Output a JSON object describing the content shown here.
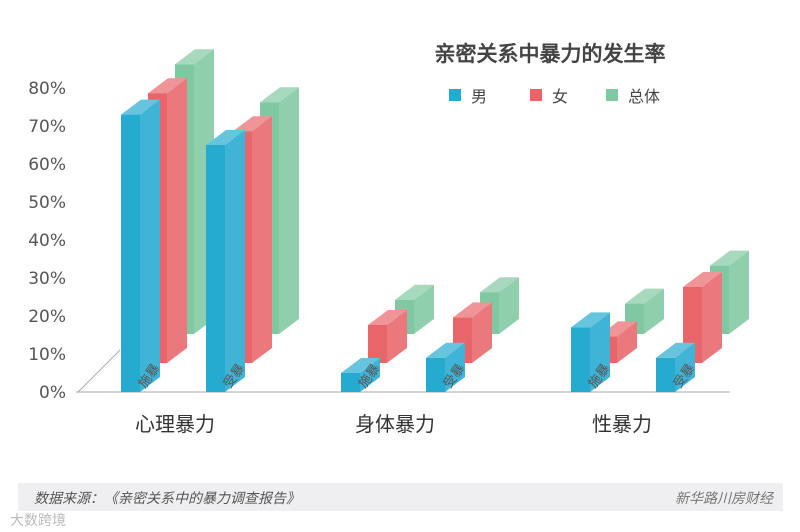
{
  "chart_data": {
    "type": "bar",
    "title": "亲密关系中暴力的发生率",
    "categories": [
      "心理暴力",
      "身体暴力",
      "性暴力"
    ],
    "subcategories": [
      "施暴",
      "受暴"
    ],
    "series": [
      {
        "name": "男",
        "color": "#25aad0",
        "values": [
          [
            73,
            65
          ],
          [
            5,
            9
          ],
          [
            17,
            9
          ]
        ]
      },
      {
        "name": "女",
        "color": "#e8666a",
        "values": [
          [
            71,
            61
          ],
          [
            10,
            12
          ],
          [
            7,
            20
          ]
        ]
      },
      {
        "name": "总体",
        "color": "#80c8a2",
        "values": [
          [
            71,
            61
          ],
          [
            9,
            11
          ],
          [
            8,
            18
          ]
        ]
      }
    ],
    "yticks": [
      "0%",
      "10%",
      "20%",
      "30%",
      "40%",
      "50%",
      "60%",
      "70%",
      "80%"
    ],
    "ylim": [
      0,
      80
    ],
    "legend_position": "top-right"
  },
  "footer": {
    "source": "数据来源：《亲密关系中的暴力调查报告》",
    "watermark": "新华路川房财经",
    "watermark2": "大数跨境"
  }
}
